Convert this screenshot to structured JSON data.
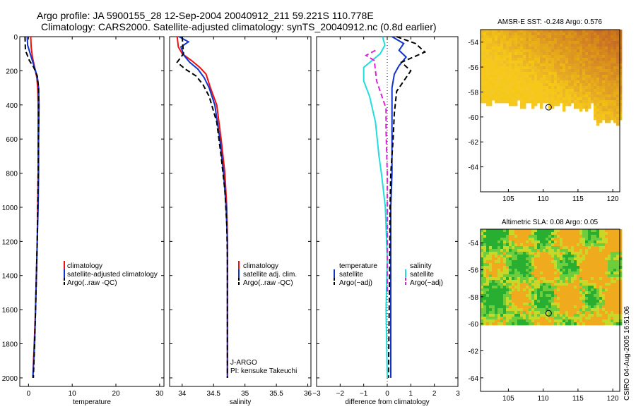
{
  "title_line1": "Argo profile: JA 5900155_28 12-Sep-2004 20040912_211 59.221S 110.778E",
  "title_line2": "Climatology: CARS2000. Satellite-adjusted climatology: synTS_20040912.nc (0.8d earlier)",
  "stamp": "CSIRO 04-Aug-2005 16:51:06",
  "colors": {
    "climatology": "#ee1111",
    "satellite": "#1133cc",
    "argo": "#000000",
    "sal_sat": "#22dddd",
    "sal_argo": "#dd22dd",
    "land": "#ffffff"
  },
  "chart_data": [
    {
      "type": "line",
      "id": "temperature",
      "xlabel": "temperature",
      "xlim": [
        -2,
        31
      ],
      "ylim": [
        0,
        2050
      ],
      "y_reversed": true,
      "xticks": [
        "0",
        "10",
        "20",
        "30"
      ],
      "yticks": [
        "0",
        "200",
        "400",
        "600",
        "800",
        "1000",
        "1200",
        "1400",
        "1600",
        "1800",
        "2000"
      ],
      "legend": [
        "climatology",
        "satellite-adjusted climatology",
        "Argo(..raw -QC)"
      ],
      "series": [
        {
          "name": "climatology",
          "style": "solid",
          "points": [
            [
              0.5,
              0
            ],
            [
              0.6,
              60
            ],
            [
              0.9,
              120
            ],
            [
              1.4,
              180
            ],
            [
              1.9,
              240
            ],
            [
              2.1,
              300
            ],
            [
              2.2,
              400
            ],
            [
              2.2,
              600
            ],
            [
              2.2,
              800
            ],
            [
              2.1,
              1000
            ],
            [
              2.0,
              1200
            ],
            [
              1.8,
              1400
            ],
            [
              1.6,
              1600
            ],
            [
              1.3,
              1800
            ],
            [
              1.0,
              2000
            ]
          ]
        },
        {
          "name": "satellite-adjusted climatology",
          "style": "solid",
          "points": [
            [
              -0.3,
              0
            ],
            [
              -0.2,
              50
            ],
            [
              0.4,
              100
            ],
            [
              1.0,
              150
            ],
            [
              1.6,
              200
            ],
            [
              2.1,
              250
            ],
            [
              2.3,
              300
            ],
            [
              2.4,
              400
            ],
            [
              2.3,
              600
            ],
            [
              2.3,
              800
            ],
            [
              2.2,
              1000
            ],
            [
              2.0,
              1200
            ],
            [
              1.8,
              1400
            ],
            [
              1.6,
              1600
            ],
            [
              1.4,
              1800
            ],
            [
              1.0,
              2000
            ]
          ]
        },
        {
          "name": "Argo(..raw -QC)",
          "style": "dashed",
          "points": [
            [
              -0.8,
              0
            ],
            [
              -0.7,
              80
            ],
            [
              0.2,
              140
            ],
            [
              1.2,
              180
            ],
            [
              2.0,
              230
            ],
            [
              2.3,
              300
            ],
            [
              2.3,
              500
            ],
            [
              2.2,
              800
            ],
            [
              2.1,
              1000
            ],
            [
              2.0,
              1200
            ],
            [
              1.8,
              1400
            ],
            [
              1.6,
              1600
            ],
            [
              1.4,
              1800
            ],
            [
              1.1,
              2000
            ]
          ]
        }
      ]
    },
    {
      "type": "line",
      "id": "salinity",
      "xlabel": "salinity",
      "xlim": [
        33.8,
        36.05
      ],
      "ylim": [
        0,
        2050
      ],
      "y_reversed": true,
      "xticks": [
        "34",
        "34.5",
        "35",
        "35.5",
        "36"
      ],
      "legend": [
        "climatology",
        "satellite adj. clim.",
        "Argo(..raw -QC)"
      ],
      "annotation": [
        "J-ARGO",
        "PI: kensuke Takeuchi"
      ],
      "series": [
        {
          "name": "climatology",
          "style": "solid",
          "points": [
            [
              33.92,
              0
            ],
            [
              33.94,
              60
            ],
            [
              34.0,
              100
            ],
            [
              34.15,
              140
            ],
            [
              34.28,
              180
            ],
            [
              34.38,
              220
            ],
            [
              34.45,
              300
            ],
            [
              34.55,
              400
            ],
            [
              34.62,
              600
            ],
            [
              34.68,
              800
            ],
            [
              34.71,
              1000
            ],
            [
              34.72,
              1200
            ],
            [
              34.72,
              1600
            ],
            [
              34.72,
              2000
            ]
          ]
        },
        {
          "name": "satellite adj. clim.",
          "style": "solid",
          "points": [
            [
              33.95,
              0
            ],
            [
              34.1,
              30
            ],
            [
              33.98,
              60
            ],
            [
              34.03,
              110
            ],
            [
              34.12,
              150
            ],
            [
              34.25,
              190
            ],
            [
              34.35,
              240
            ],
            [
              34.43,
              300
            ],
            [
              34.52,
              400
            ],
            [
              34.6,
              600
            ],
            [
              34.66,
              800
            ],
            [
              34.7,
              1000
            ],
            [
              34.72,
              1200
            ],
            [
              34.72,
              1600
            ],
            [
              34.72,
              2000
            ]
          ]
        },
        {
          "name": "Argo(..raw -QC)",
          "style": "dashed",
          "points": [
            [
              34.0,
              0
            ],
            [
              34.02,
              100
            ],
            [
              33.92,
              150
            ],
            [
              34.05,
              190
            ],
            [
              34.22,
              230
            ],
            [
              34.33,
              280
            ],
            [
              34.43,
              350
            ],
            [
              34.55,
              500
            ],
            [
              34.62,
              700
            ],
            [
              34.68,
              900
            ],
            [
              34.71,
              1100
            ],
            [
              34.72,
              1300
            ],
            [
              34.72,
              2000
            ]
          ]
        }
      ]
    },
    {
      "type": "line",
      "id": "difference",
      "xlabel": "difference from climatology",
      "xlim": [
        -3,
        3
      ],
      "ylim": [
        0,
        2050
      ],
      "y_reversed": true,
      "xticks": [
        "−3",
        "−2",
        "−1",
        "0",
        "1",
        "2",
        "3"
      ],
      "legend_left": [
        "temperature",
        "satellite",
        "Argo(−adj)"
      ],
      "legend_right": [
        "salinity",
        "satellite",
        "Argo(−adj)"
      ],
      "series": [
        {
          "name": "temperature satellite",
          "style": "solid",
          "color_key": "satellite",
          "points": [
            [
              0.2,
              0
            ],
            [
              0.7,
              40
            ],
            [
              0.5,
              80
            ],
            [
              0.8,
              120
            ],
            [
              0.5,
              170
            ],
            [
              0.3,
              220
            ],
            [
              0.2,
              300
            ],
            [
              0.2,
              500
            ],
            [
              0.2,
              800
            ],
            [
              0.15,
              1000
            ],
            [
              0.15,
              1500
            ],
            [
              0.15,
              2000
            ]
          ]
        },
        {
          "name": "temperature Argo(-adj)",
          "style": "dashed",
          "color_key": "argo",
          "points": [
            [
              0.4,
              0
            ],
            [
              1.2,
              40
            ],
            [
              1.6,
              90
            ],
            [
              0.6,
              150
            ],
            [
              1.0,
              200
            ],
            [
              0.7,
              260
            ],
            [
              0.4,
              320
            ],
            [
              0.3,
              450
            ],
            [
              0.25,
              600
            ],
            [
              0.15,
              800
            ],
            [
              0.12,
              1000
            ],
            [
              0.1,
              1400
            ],
            [
              0.05,
              2000
            ]
          ]
        },
        {
          "name": "salinity satellite",
          "style": "solid",
          "color_key": "sal_sat",
          "points": [
            [
              -0.2,
              0
            ],
            [
              -0.1,
              50
            ],
            [
              -0.3,
              100
            ],
            [
              -1.0,
              180
            ],
            [
              -1.0,
              260
            ],
            [
              -0.75,
              350
            ],
            [
              -0.5,
              500
            ],
            [
              -0.35,
              700
            ],
            [
              -0.25,
              800
            ],
            [
              -0.08,
              1000
            ],
            [
              0.0,
              1300
            ],
            [
              -0.05,
              1600
            ],
            [
              0.0,
              2000
            ]
          ]
        },
        {
          "name": "salinity Argo(-adj)",
          "style": "dashed",
          "color_key": "sal_argo",
          "points": [
            [
              -0.5,
              80
            ],
            [
              -0.9,
              110
            ],
            [
              -0.55,
              140
            ],
            [
              -0.45,
              260
            ],
            [
              -0.2,
              360
            ],
            [
              -0.05,
              420
            ],
            [
              -0.05,
              550
            ],
            [
              0.0,
              800
            ],
            [
              0.0,
              1200
            ],
            [
              0.0,
              1500
            ]
          ]
        }
      ]
    },
    {
      "type": "heatmap",
      "id": "sst",
      "title": "AMSR-E SST: -0.248 Argo: 0.576",
      "xlim": [
        101,
        121
      ],
      "ylim": [
        -66,
        -53
      ],
      "xticks": [
        "105",
        "110",
        "115",
        "120"
      ],
      "yticks": [
        "-54",
        "-56",
        "-58",
        "-60",
        "-62",
        "-64"
      ],
      "argo_position": [
        110.778,
        -59.221
      ]
    },
    {
      "type": "heatmap",
      "id": "sla",
      "title": "Altimetric SLA: 0.08 Argo: 0.05",
      "xlim": [
        101,
        121
      ],
      "ylim": [
        -65,
        -53
      ],
      "xticks": [
        "105",
        "110",
        "115",
        "120"
      ],
      "yticks": [
        "-54",
        "-56",
        "-58",
        "-60",
        "-62",
        "-64"
      ],
      "argo_position": [
        110.778,
        -59.221
      ]
    }
  ]
}
